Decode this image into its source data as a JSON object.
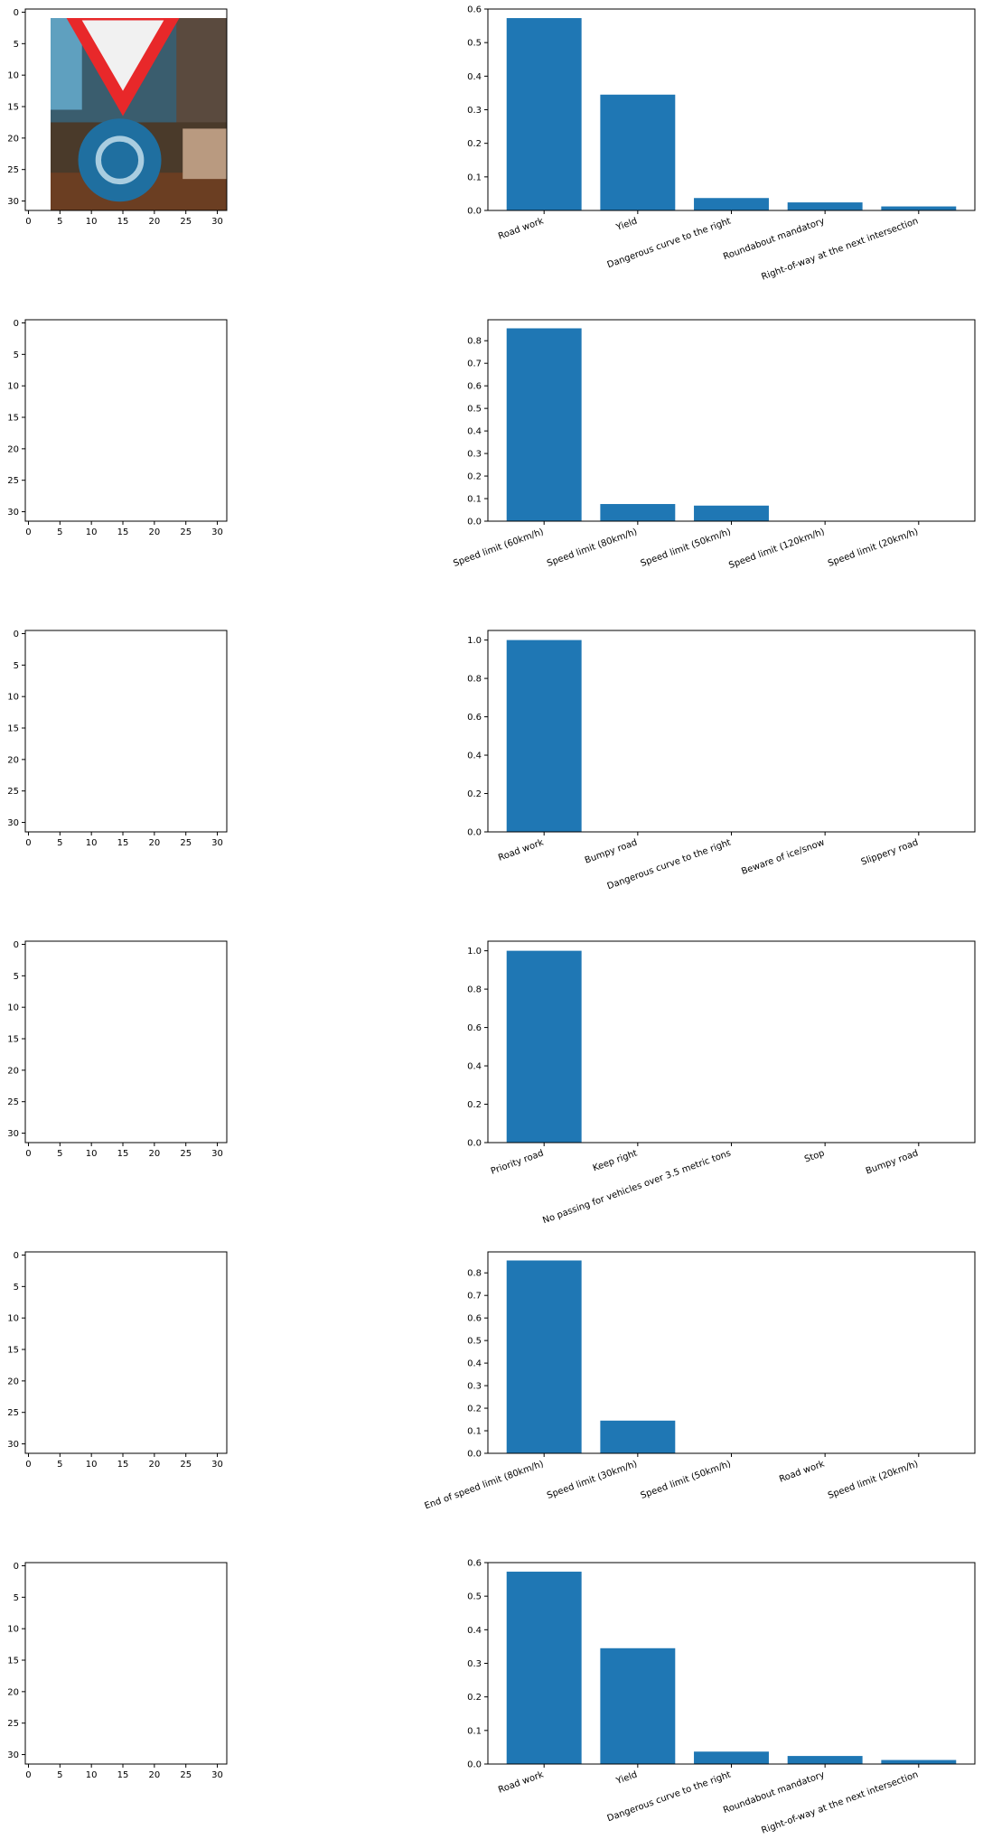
{
  "figure": {
    "image_axis_ticks": {
      "x": [
        0,
        5,
        10,
        15,
        20,
        25,
        30
      ],
      "y": [
        0,
        5,
        10,
        15,
        20,
        25,
        30
      ],
      "range": [
        -0.5,
        31.5
      ]
    },
    "colors": {
      "bar": "#1f77b4",
      "axes": "#000000",
      "background": "#ffffff"
    }
  },
  "chart_data": [
    {
      "type": "bar",
      "image": "yield-sign-over-roundabout-sign",
      "categories": [
        "Road work",
        "Yield",
        "Dangerous curve to the right",
        "Roundabout mandatory",
        "Right-of-way at the next intersection"
      ],
      "values": [
        0.573,
        0.345,
        0.037,
        0.024,
        0.012
      ],
      "ylim": [
        0,
        0.6
      ],
      "yticks": [
        "0.0",
        "0.1",
        "0.2",
        "0.3",
        "0.4",
        "0.5",
        "0.6"
      ],
      "xlabel": "",
      "ylabel": "",
      "title": ""
    },
    {
      "type": "bar",
      "image": "speed-limit-50-sign",
      "categories": [
        "Speed limit (60km/h)",
        "Speed limit (80km/h)",
        "Speed limit (50km/h)",
        "Speed limit (120km/h)",
        "Speed limit (20km/h)"
      ],
      "values": [
        0.855,
        0.076,
        0.069,
        0.0,
        0.0
      ],
      "ylim": [
        0,
        0.893
      ],
      "yticks": [
        "0.0",
        "0.1",
        "0.2",
        "0.3",
        "0.4",
        "0.5",
        "0.6",
        "0.7",
        "0.8"
      ],
      "xlabel": "",
      "ylabel": "",
      "title": ""
    },
    {
      "type": "bar",
      "image": "road-work-sign",
      "categories": [
        "Road work",
        "Bumpy road",
        "Dangerous curve to the right",
        "Beware of ice/snow",
        "Slippery road"
      ],
      "values": [
        1.0,
        0.0,
        0.0,
        0.0,
        0.0
      ],
      "ylim": [
        0,
        1.05
      ],
      "yticks": [
        "0.0",
        "0.2",
        "0.4",
        "0.6",
        "0.8",
        "1.0"
      ],
      "xlabel": "",
      "ylabel": "",
      "title": ""
    },
    {
      "type": "bar",
      "image": "priority-road-sign",
      "categories": [
        "Priority road",
        "Keep right",
        "No passing for vehicles over 3.5 metric tons",
        "Stop",
        "Bumpy road"
      ],
      "values": [
        1.0,
        0.0,
        0.0,
        0.0,
        0.0
      ],
      "ylim": [
        0,
        1.05
      ],
      "yticks": [
        "0.0",
        "0.2",
        "0.4",
        "0.6",
        "0.8",
        "1.0"
      ],
      "xlabel": "",
      "ylabel": "",
      "title": ""
    },
    {
      "type": "bar",
      "image": "end-of-speed-limit-30-sign",
      "categories": [
        "End of speed limit (80km/h)",
        "Speed limit (30km/h)",
        "Speed limit (50km/h)",
        "Road work",
        "Speed limit (20km/h)"
      ],
      "values": [
        0.855,
        0.145,
        0.0,
        0.0,
        0.0
      ],
      "ylim": [
        0,
        0.893
      ],
      "yticks": [
        "0.0",
        "0.1",
        "0.2",
        "0.3",
        "0.4",
        "0.5",
        "0.6",
        "0.7",
        "0.8"
      ],
      "xlabel": "",
      "ylabel": "",
      "title": ""
    },
    {
      "type": "bar",
      "image": "yield-sign-over-roundabout-sign",
      "categories": [
        "Road work",
        "Yield",
        "Dangerous curve to the right",
        "Roundabout mandatory",
        "Right-of-way at the next intersection"
      ],
      "values": [
        0.573,
        0.345,
        0.037,
        0.024,
        0.012
      ],
      "ylim": [
        0,
        0.6
      ],
      "yticks": [
        "0.0",
        "0.1",
        "0.2",
        "0.3",
        "0.4",
        "0.5",
        "0.6"
      ],
      "xlabel": "",
      "ylabel": "",
      "title": ""
    }
  ]
}
